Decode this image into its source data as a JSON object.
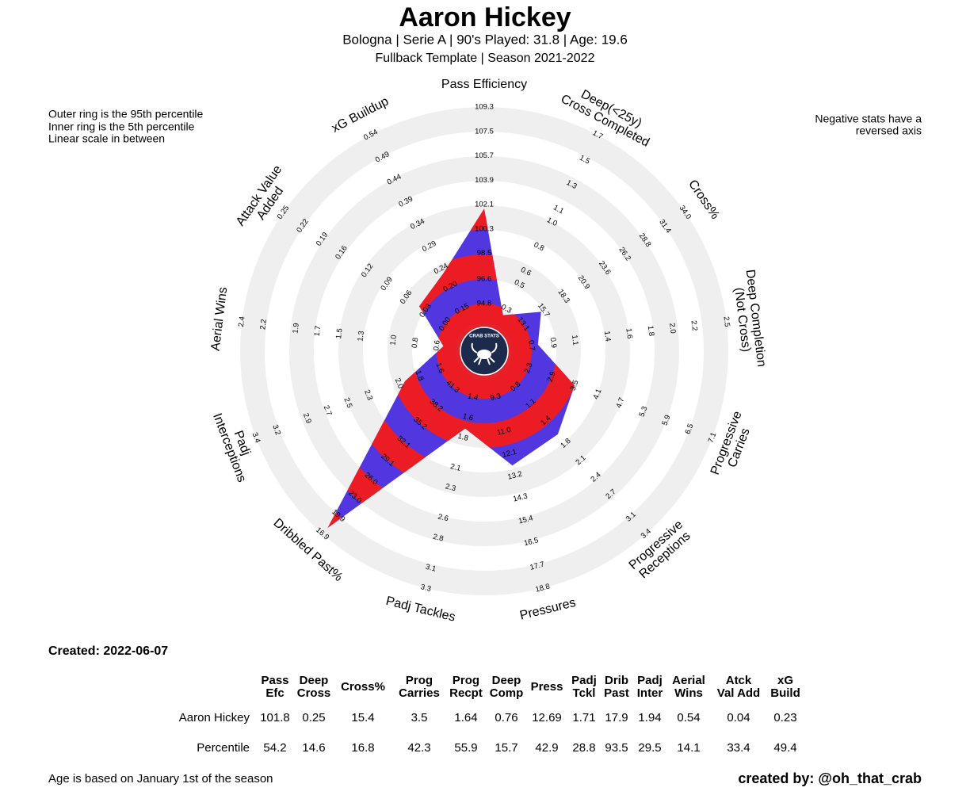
{
  "chart_data": {
    "type": "radar",
    "title": "Aaron Hickey",
    "subtitle": "Bologna  | Serie A | 90's Played: 31.8 | Age: 19.6",
    "subtitle2": "Fullback Template | Season 2021-2022",
    "notes_left": [
      "Outer ring is the 95th percentile",
      "Inner ring is the 5th percentile",
      "Linear scale in between"
    ],
    "notes_right": [
      "Negative stats have a",
      "reversed axis"
    ],
    "logo_text": "CRAB STATS",
    "params": [
      [
        "Pass Efficiency"
      ],
      [
        "Deep(<25y)",
        "Cross Completed"
      ],
      [
        "Cross%"
      ],
      [
        "Deep Completion",
        "(Not Cross)"
      ],
      [
        "Progressive",
        "Carries"
      ],
      [
        "Progressive",
        "Receptions"
      ],
      [
        "Pressures"
      ],
      [
        "Padj Tackles"
      ],
      [
        "Dribbled Past%"
      ],
      [
        "Padj",
        "Interceptions"
      ],
      [
        "Aerial Wins"
      ],
      [
        "Attack Value",
        "Added"
      ],
      [
        "xG Buildup"
      ]
    ],
    "ranges": [
      [
        94.8,
        109.3
      ],
      [
        0.3,
        1.7
      ],
      [
        13.1,
        34.0
      ],
      [
        0.7,
        2.5
      ],
      [
        2.3,
        7.1
      ],
      [
        0.8,
        3.4
      ],
      [
        9.3,
        18.8
      ],
      [
        1.4,
        3.3
      ],
      [
        41.3,
        16.9
      ],
      [
        1.6,
        3.4
      ],
      [
        0.6,
        2.4
      ],
      [
        0.0,
        0.25
      ],
      [
        0.15,
        0.54
      ]
    ],
    "ticks": [
      [
        94.8,
        96.6,
        98.5,
        100.3,
        102.1,
        103.9,
        105.7,
        107.5,
        109.3
      ],
      [
        0.3,
        0.5,
        0.6,
        0.8,
        {
          "value": 1.0,
          "label": "1.0"
        },
        1.1,
        1.3,
        1.5,
        1.7
      ],
      [
        13.1,
        15.7,
        18.3,
        20.9,
        23.6,
        26.2,
        28.8,
        31.4,
        {
          "value": 34.0,
          "label": "34.0"
        }
      ],
      [
        0.7,
        0.9,
        1.1,
        1.4,
        1.6,
        1.8,
        {
          "value": 2.0,
          "label": "2.0"
        },
        2.2,
        2.5
      ],
      [
        2.3,
        2.9,
        3.5,
        4.1,
        4.7,
        5.3,
        5.9,
        6.5,
        7.1
      ],
      [
        0.8,
        1.1,
        1.4,
        1.8,
        2.1,
        2.4,
        2.7,
        3.1,
        3.4
      ],
      [
        9.3,
        {
          "value": 11.0,
          "label": "11.0"
        },
        12.1,
        13.2,
        14.3,
        15.4,
        16.5,
        17.7,
        18.8
      ],
      [
        1.4,
        1.6,
        1.8,
        2.1,
        2.3,
        2.6,
        2.8,
        3.1,
        3.3
      ],
      [
        41.3,
        38.2,
        35.2,
        32.1,
        29.1,
        {
          "value": 26.0,
          "label": "26.0"
        },
        {
          "value": 23.0,
          "label": "23.0"
        },
        19.9,
        16.9
      ],
      [
        1.6,
        1.8,
        {
          "value": 2.0,
          "label": "2.0"
        },
        2.3,
        2.5,
        2.7,
        2.9,
        3.2,
        3.4
      ],
      [
        0.6,
        0.8,
        {
          "value": 1.0,
          "label": "1.0"
        },
        1.3,
        1.5,
        1.7,
        1.9,
        2.2,
        2.4
      ],
      [
        {
          "value": 0.0,
          "label": "0.00"
        },
        0.03,
        0.06,
        0.09,
        0.12,
        0.16,
        0.19,
        0.22,
        0.25
      ],
      [
        0.15,
        {
          "value": 0.2,
          "label": "0.20"
        },
        0.24,
        0.29,
        0.34,
        0.39,
        0.44,
        0.49,
        0.54
      ]
    ],
    "ring_color": "#efefef",
    "series": [
      {
        "color": "#5236df",
        "band_color": "#ec1c24",
        "values": [
          101.8,
          0.25,
          15.4,
          0.76,
          3.5,
          1.64,
          12.69,
          1.71,
          17.9,
          1.94,
          0.54,
          0.04,
          0.23
        ]
      }
    ]
  },
  "created": "Created: 2022-06-07",
  "table": {
    "headers": [
      [
        "Pass",
        "Efc"
      ],
      [
        "Deep",
        "Cross"
      ],
      [
        "Cross%"
      ],
      [
        "Prog",
        "Carries"
      ],
      [
        "Prog",
        "Recpt"
      ],
      [
        "Deep",
        "Comp"
      ],
      [
        "Press"
      ],
      [
        "Padj",
        "Tckl"
      ],
      [
        "Drib",
        "Past"
      ],
      [
        "Padj",
        "Inter"
      ],
      [
        "Aerial",
        "Wins"
      ],
      [
        "Atck",
        "Val Add"
      ],
      [
        "xG",
        "Build"
      ]
    ],
    "rows": [
      [
        "Aaron Hickey",
        "101.8",
        "0.25",
        "15.4",
        "3.5",
        "1.64",
        "0.76",
        "12.69",
        "1.71",
        "17.9",
        "1.94",
        "0.54",
        "0.04",
        "0.23"
      ],
      [
        "Percentile",
        "54.2",
        "14.6",
        "16.8",
        "42.3",
        "55.9",
        "15.7",
        "42.9",
        "28.8",
        "93.5",
        "29.5",
        "14.1",
        "33.4",
        "49.4"
      ]
    ]
  },
  "footer_left": "Age is based on January 1st of the season",
  "footer_right": "created by: @oh_that_crab"
}
